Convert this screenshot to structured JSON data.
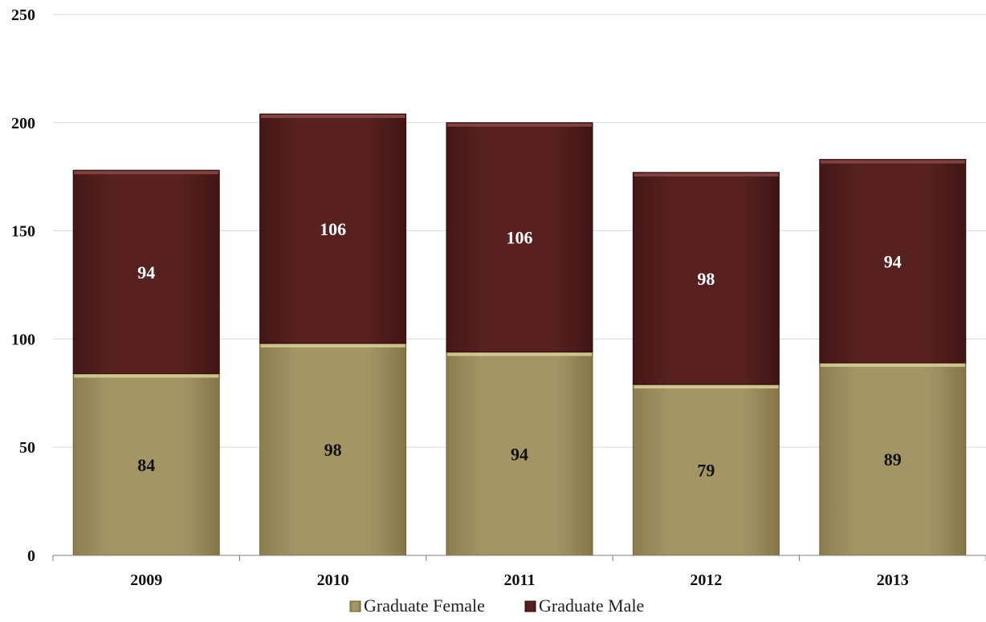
{
  "chart_data": {
    "type": "bar",
    "stacked": true,
    "categories": [
      "2009",
      "2010",
      "2011",
      "2012",
      "2013"
    ],
    "series": [
      {
        "name": "Graduate Female",
        "values": [
          84,
          98,
          94,
          79,
          89
        ],
        "color": "#a09161",
        "label_color": "#111111"
      },
      {
        "name": "Graduate Male",
        "values": [
          94,
          106,
          106,
          98,
          94
        ],
        "color": "#55201f",
        "label_color": "#ffffff"
      }
    ],
    "title": "",
    "xlabel": "",
    "ylabel": "",
    "ylim": [
      0,
      250
    ],
    "yticks": [
      0,
      50,
      100,
      150,
      200,
      250
    ],
    "grid": true,
    "legend_position": "bottom"
  }
}
